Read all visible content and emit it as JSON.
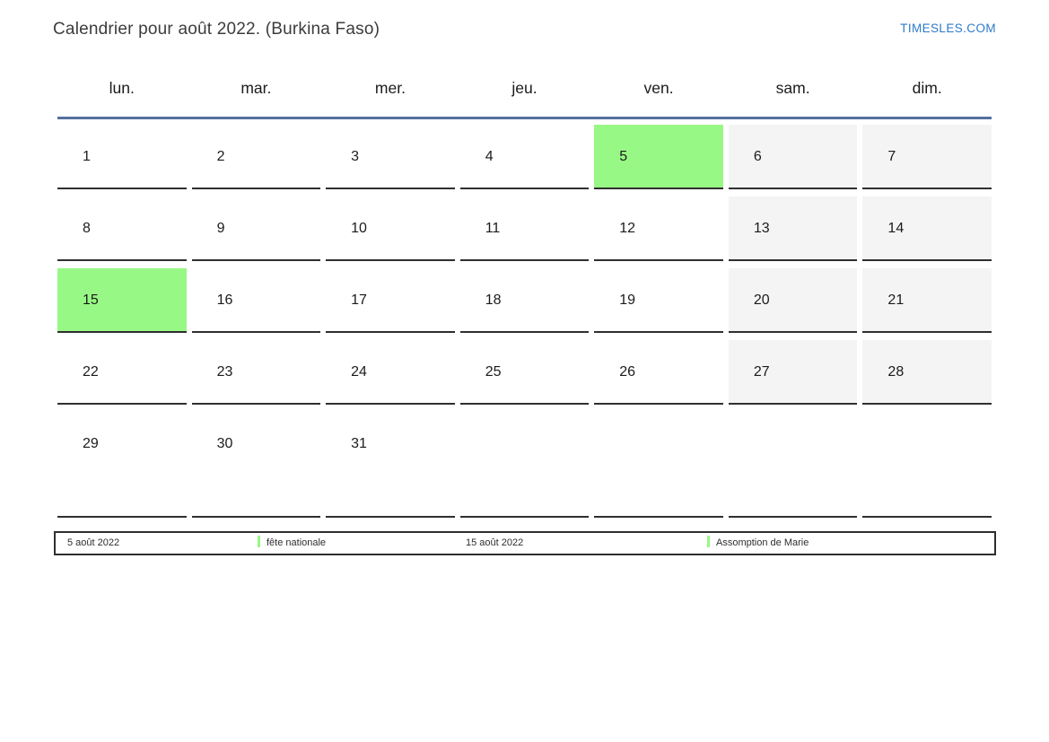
{
  "header": {
    "title": "Calendrier pour août 2022. (Burkina Faso)",
    "site_link": "TIMESLES.COM"
  },
  "weekday_headers": [
    "lun.",
    "mar.",
    "mer.",
    "jeu.",
    "ven.",
    "sam.",
    "dim."
  ],
  "calendar": {
    "weeks": [
      [
        {
          "day": "1"
        },
        {
          "day": "2"
        },
        {
          "day": "3"
        },
        {
          "day": "4"
        },
        {
          "day": "5",
          "highlight": true
        },
        {
          "day": "6",
          "weekend": true
        },
        {
          "day": "7",
          "weekend": true
        }
      ],
      [
        {
          "day": "8"
        },
        {
          "day": "9"
        },
        {
          "day": "10"
        },
        {
          "day": "11"
        },
        {
          "day": "12"
        },
        {
          "day": "13",
          "weekend": true
        },
        {
          "day": "14",
          "weekend": true
        }
      ],
      [
        {
          "day": "15",
          "highlight": true
        },
        {
          "day": "16"
        },
        {
          "day": "17"
        },
        {
          "day": "18"
        },
        {
          "day": "19"
        },
        {
          "day": "20",
          "weekend": true
        },
        {
          "day": "21",
          "weekend": true
        }
      ],
      [
        {
          "day": "22"
        },
        {
          "day": "23"
        },
        {
          "day": "24"
        },
        {
          "day": "25"
        },
        {
          "day": "26"
        },
        {
          "day": "27",
          "weekend": true
        },
        {
          "day": "28",
          "weekend": true
        }
      ],
      [
        {
          "day": "29"
        },
        {
          "day": "30"
        },
        {
          "day": "31"
        },
        {
          "day": ""
        },
        {
          "day": ""
        },
        {
          "day": ""
        },
        {
          "day": ""
        }
      ]
    ]
  },
  "legend": {
    "items": [
      {
        "type": "date",
        "text": "5 août 2022"
      },
      {
        "type": "event",
        "text": "fête nationale"
      },
      {
        "type": "date",
        "text": "15 août 2022"
      },
      {
        "type": "event",
        "text": "Assomption de Marie"
      }
    ]
  },
  "colors": {
    "highlight_green": "#98f885",
    "weekend_gray": "#f4f4f4",
    "header_line_blue": "#54719e",
    "link_blue": "#2d7ac7",
    "cell_border": "#2f2f2f"
  }
}
